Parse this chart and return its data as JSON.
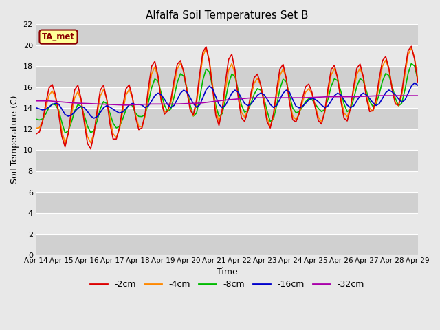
{
  "title": "Alfalfa Soil Temperatures Set B",
  "xlabel": "Time",
  "ylabel": "Soil Temperature (C)",
  "ylim": [
    0,
    22
  ],
  "yticks": [
    0,
    2,
    4,
    6,
    8,
    10,
    12,
    14,
    16,
    18,
    20,
    22
  ],
  "plot_bg_color": "#e8e8e8",
  "grid_color": "#ffffff",
  "annotation_text": "TA_met",
  "annotation_bg": "#ffff99",
  "annotation_border": "#8b0000",
  "annotation_text_color": "#8b0000",
  "series": {
    "-2cm": {
      "color": "#dd0000",
      "lw": 1.2
    },
    "-4cm": {
      "color": "#ff8800",
      "lw": 1.2
    },
    "-8cm": {
      "color": "#00bb00",
      "lw": 1.2
    },
    "-16cm": {
      "color": "#0000cc",
      "lw": 1.2
    },
    "-32cm": {
      "color": "#aa00aa",
      "lw": 1.2
    }
  },
  "x_tick_labels": [
    "Apr 14",
    "Apr 15",
    "Apr 16",
    "Apr 17",
    "Apr 18",
    "Apr 19",
    "Apr 20",
    "Apr 21",
    "Apr 22",
    "Apr 23",
    "Apr 24",
    "Apr 25",
    "Apr 26",
    "Apr 27",
    "Apr 28",
    "Apr 29"
  ],
  "legend_order": [
    "-2cm",
    "-4cm",
    "-8cm",
    "-16cm",
    "-32cm"
  ]
}
